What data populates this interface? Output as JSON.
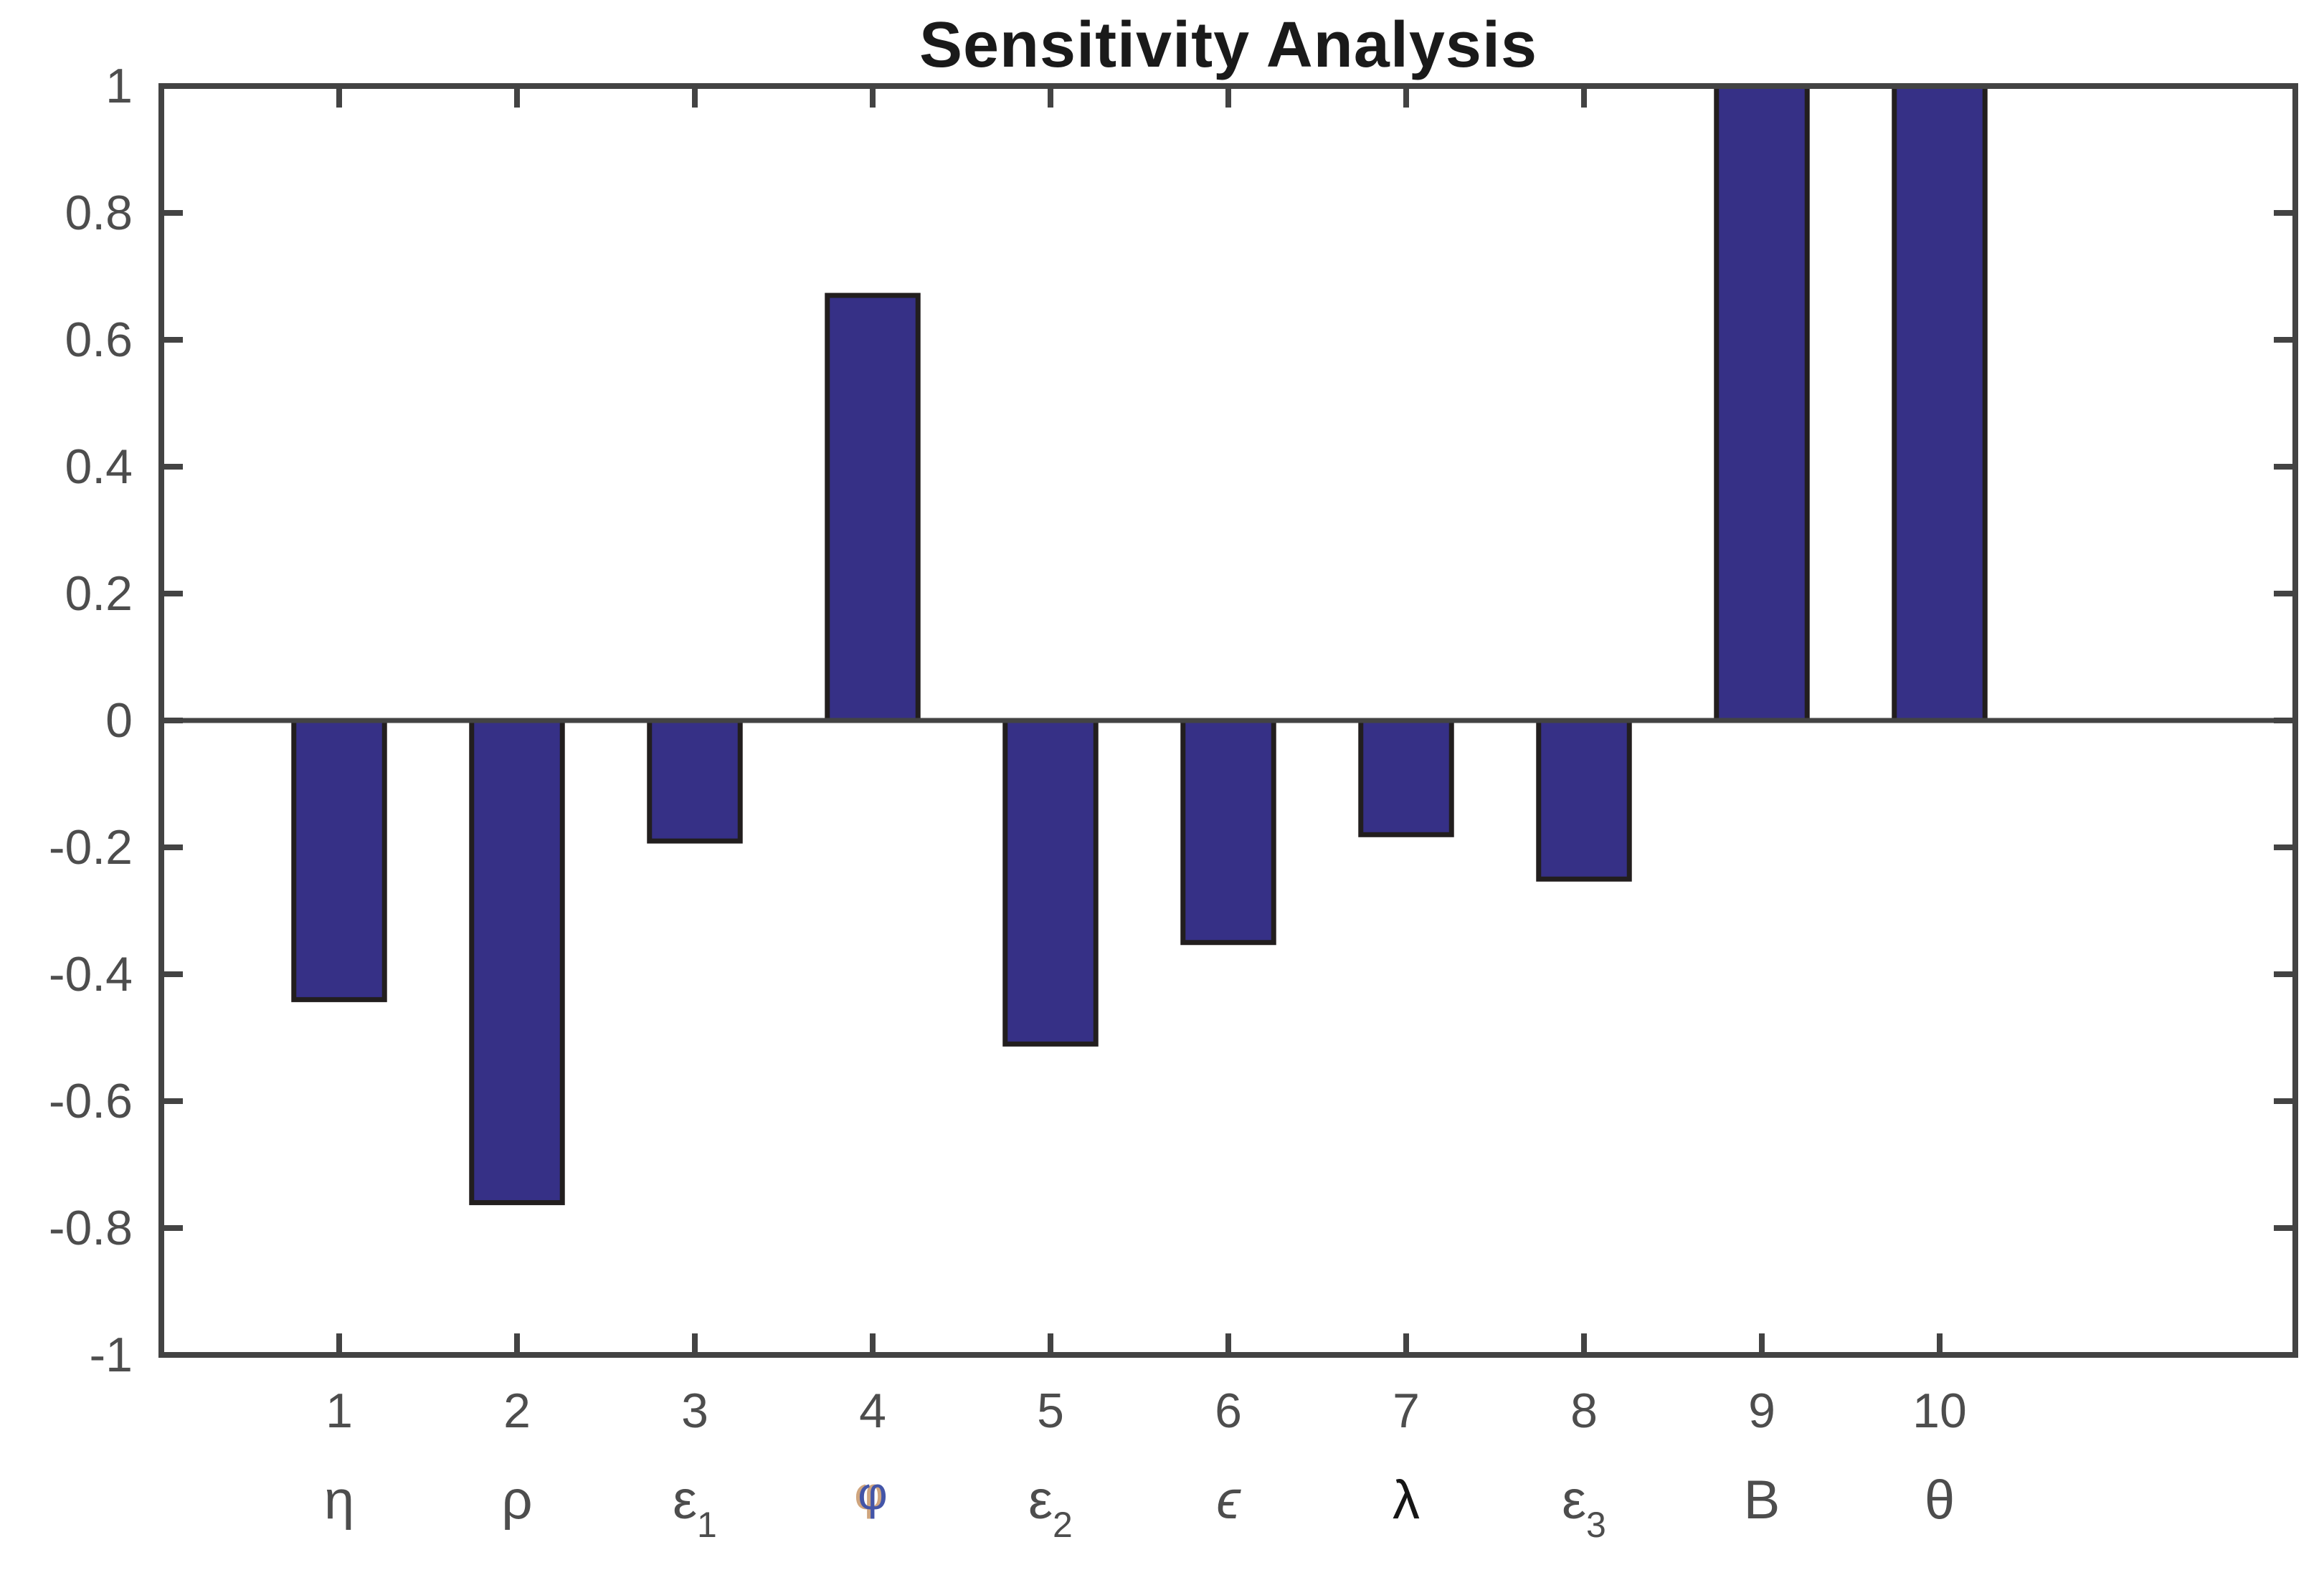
{
  "chart_data": {
    "type": "bar",
    "title": "Sensitivity Analysis",
    "categories": [
      "1",
      "2",
      "3",
      "4",
      "5",
      "6",
      "7",
      "8",
      "9",
      "10"
    ],
    "category_symbols": [
      {
        "base": "η",
        "sub": ""
      },
      {
        "base": "ρ",
        "sub": ""
      },
      {
        "base": "ε",
        "sub": "1"
      },
      {
        "base": "φ",
        "sub": ""
      },
      {
        "base": "ε",
        "sub": "2"
      },
      {
        "base": "ϵ",
        "sub": ""
      },
      {
        "base": "λ",
        "sub": ""
      },
      {
        "base": "ε",
        "sub": "3"
      },
      {
        "base": "B",
        "sub": ""
      },
      {
        "base": "θ",
        "sub": ""
      }
    ],
    "values": [
      -0.44,
      -0.76,
      -0.19,
      0.67,
      -0.51,
      -0.35,
      -0.18,
      -0.25,
      1.0,
      1.0
    ],
    "xlabel": "",
    "ylabel": "",
    "ylim": [
      -1,
      1
    ],
    "yticks": [
      -1,
      -0.8,
      -0.6,
      -0.4,
      -0.2,
      0,
      0.2,
      0.4,
      0.6,
      0.8,
      1
    ],
    "ytick_labels": [
      "-1",
      "-0.8",
      "-0.6",
      "-0.4",
      "-0.2",
      "0",
      "0.2",
      "0.4",
      "0.6",
      "0.8",
      "1"
    ],
    "xlim": [
      0,
      12
    ],
    "bar_width_units": 0.51,
    "grid": "off",
    "legend": "none",
    "colors": {
      "bar_fill": "#363086",
      "bar_edge": "#221e1e",
      "axis": "#434343",
      "tick_label": "#4d4d4d",
      "title": "#1a1a1a",
      "lambda_label": "#161616",
      "phi_label": "#4355a8",
      "phi_fringe": "#b06a2a"
    }
  }
}
